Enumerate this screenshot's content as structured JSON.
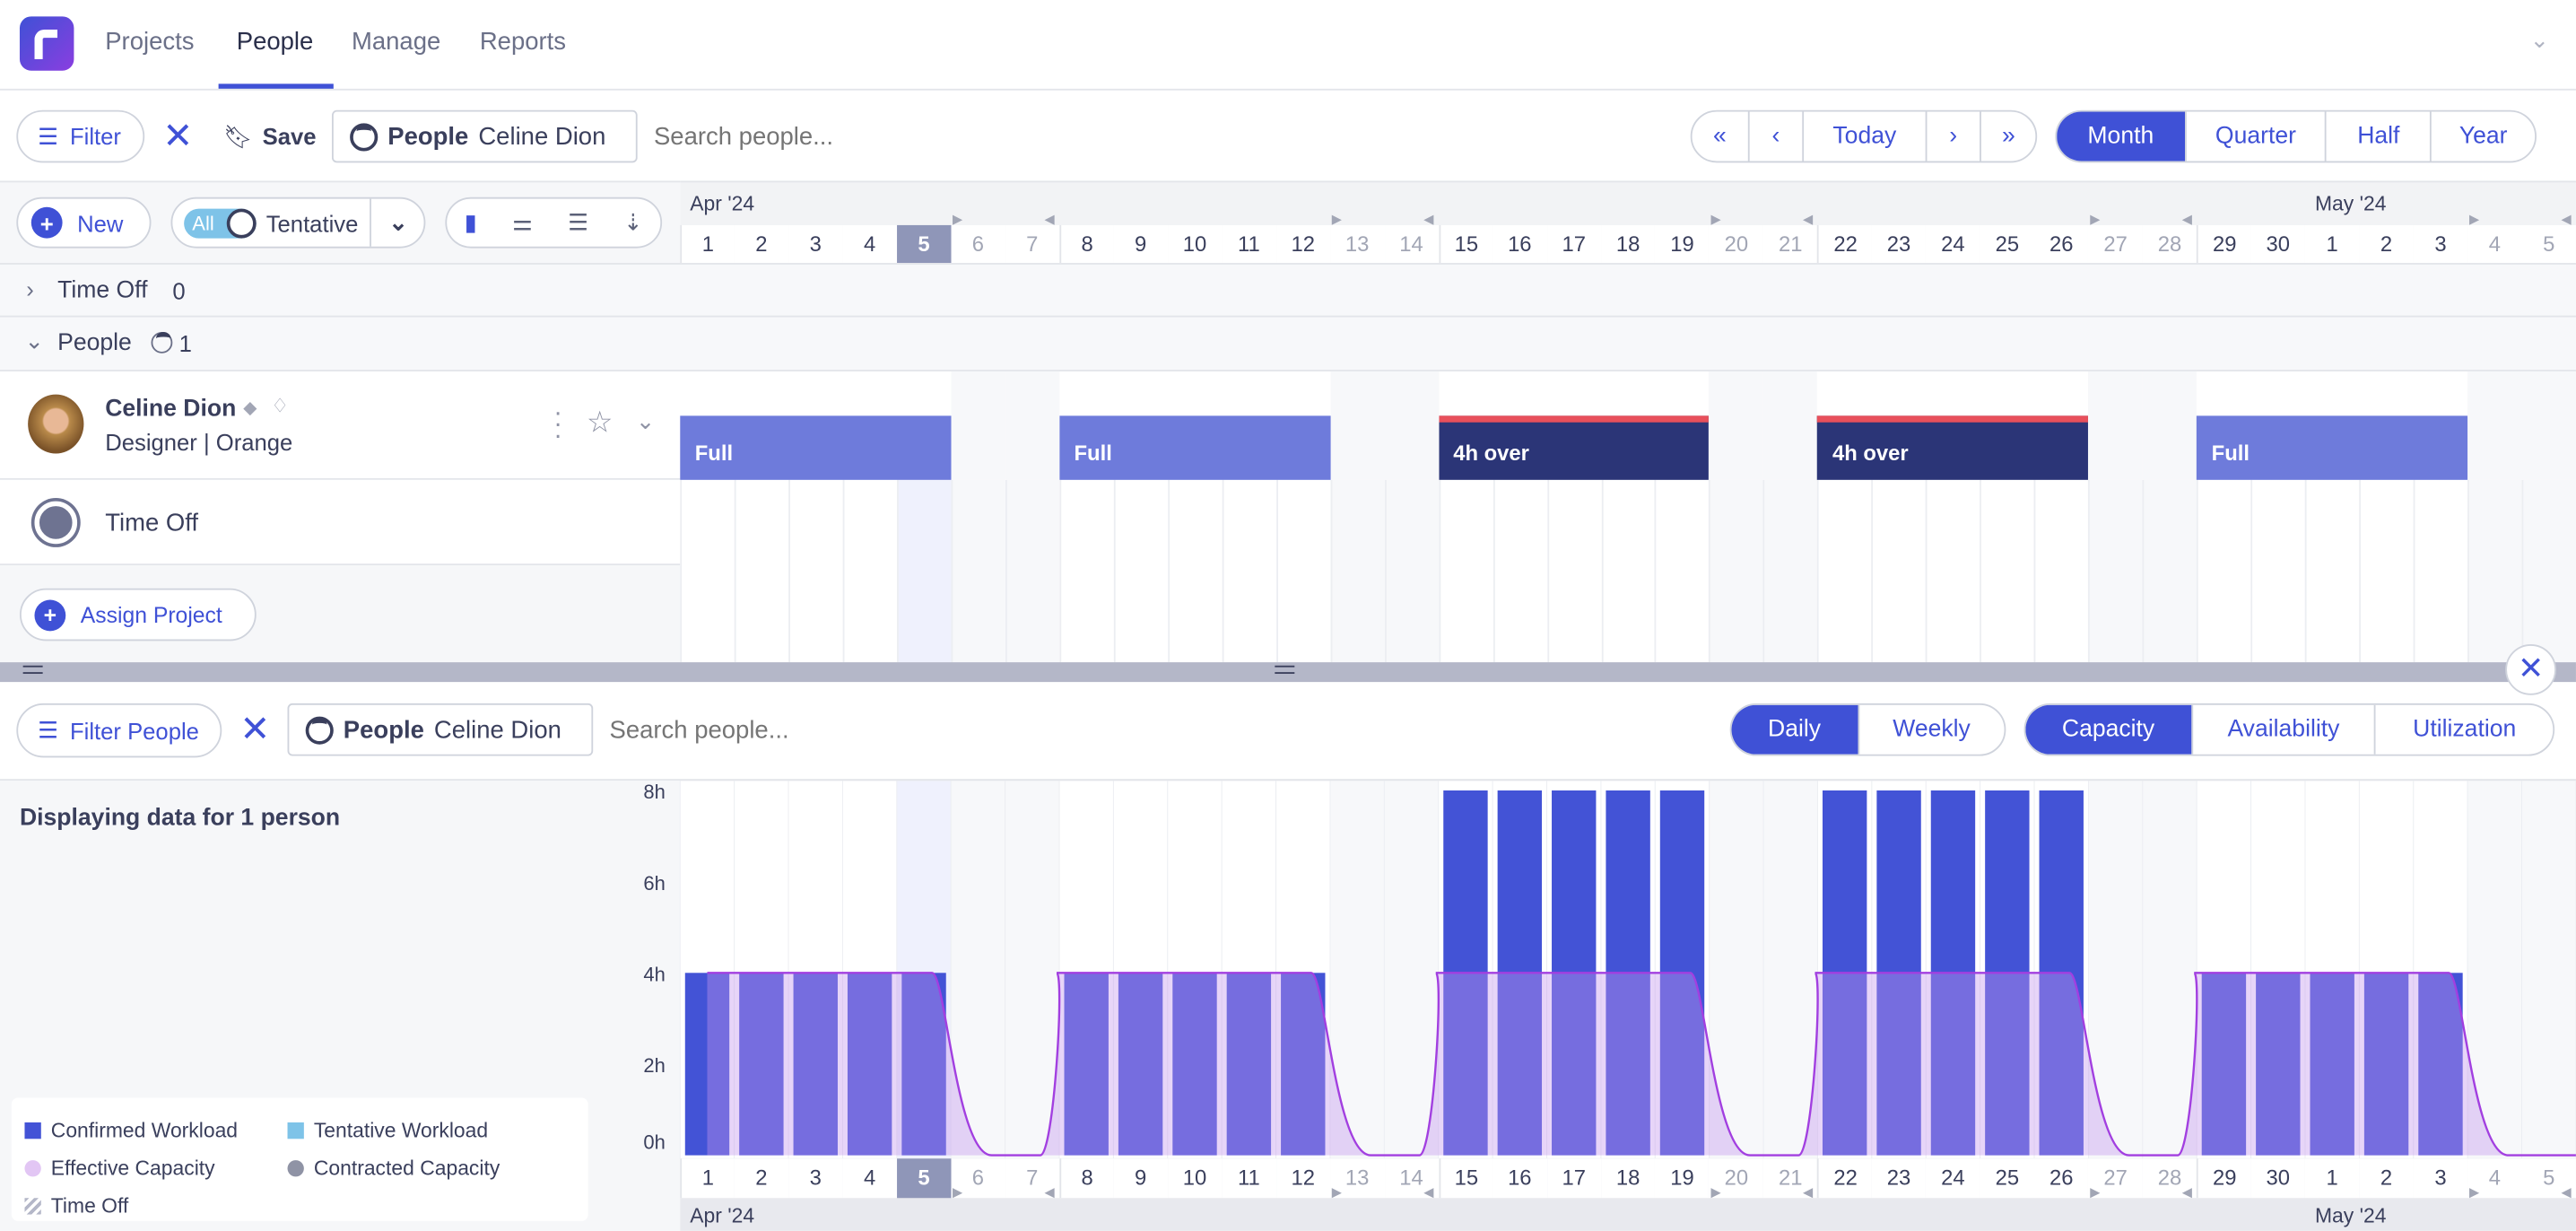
{
  "nav": {
    "tabs": [
      {
        "label": "Projects"
      },
      {
        "label": "People",
        "active": true
      },
      {
        "label": "Manage"
      },
      {
        "label": "Reports"
      }
    ]
  },
  "toolbar": {
    "filter": "Filter",
    "save": "Save",
    "chip_label": "People",
    "chip_value": "Celine Dion",
    "search_placeholder": "Search people...",
    "today": "Today",
    "ranges": [
      "Month",
      "Quarter",
      "Half",
      "Year"
    ],
    "active_range": "Month"
  },
  "controls": {
    "new": "New",
    "toggle_all": "All",
    "tentative": "Tentative"
  },
  "timeline": {
    "months": [
      {
        "label": "Apr '24",
        "start": 0
      },
      {
        "label": "May '24",
        "start": 30
      }
    ],
    "days": [
      "1",
      "2",
      "3",
      "4",
      "5",
      "6",
      "7",
      "8",
      "9",
      "10",
      "11",
      "12",
      "13",
      "14",
      "15",
      "16",
      "17",
      "18",
      "19",
      "20",
      "21",
      "22",
      "23",
      "24",
      "25",
      "26",
      "27",
      "28",
      "29",
      "30",
      "1",
      "2",
      "3",
      "4",
      "5"
    ],
    "weekend": [
      5,
      6,
      12,
      13,
      19,
      20,
      26,
      27,
      33,
      34
    ],
    "today_index": 4
  },
  "groups": {
    "time_off": {
      "label": "Time Off",
      "count": "0"
    },
    "people": {
      "label": "People",
      "count": "1"
    }
  },
  "person": {
    "name": "Celine Dion",
    "role": "Designer | Orange",
    "time_off_label": "Time Off",
    "assign": "Assign Project",
    "allocations": [
      {
        "label": "Full",
        "start": 0,
        "end": 4,
        "over": false
      },
      {
        "label": "Full",
        "start": 7,
        "end": 11,
        "over": false
      },
      {
        "label": "4h over",
        "start": 14,
        "end": 18,
        "over": true
      },
      {
        "label": "4h over",
        "start": 21,
        "end": 25,
        "over": true
      },
      {
        "label": "Full",
        "start": 28,
        "end": 32,
        "over": false
      }
    ]
  },
  "bottom": {
    "filter": "Filter People",
    "chip_label": "People",
    "chip_value": "Celine Dion",
    "search_placeholder": "Search people...",
    "period": [
      "Daily",
      "Weekly"
    ],
    "active_period": "Daily",
    "modes": [
      "Capacity",
      "Availability",
      "Utilization"
    ],
    "active_mode": "Capacity",
    "summary": "Displaying data for 1 person"
  },
  "chart_data": {
    "type": "bar",
    "yticks": [
      "0h",
      "2h",
      "4h",
      "6h",
      "8h"
    ],
    "ylim": [
      0,
      8
    ],
    "categories": [
      "Apr 1",
      "Apr 2",
      "Apr 3",
      "Apr 4",
      "Apr 5",
      "Apr 6",
      "Apr 7",
      "Apr 8",
      "Apr 9",
      "Apr 10",
      "Apr 11",
      "Apr 12",
      "Apr 13",
      "Apr 14",
      "Apr 15",
      "Apr 16",
      "Apr 17",
      "Apr 18",
      "Apr 19",
      "Apr 20",
      "Apr 21",
      "Apr 22",
      "Apr 23",
      "Apr 24",
      "Apr 25",
      "Apr 26",
      "Apr 27",
      "Apr 28",
      "Apr 29",
      "Apr 30",
      "May 1",
      "May 2",
      "May 3",
      "May 4",
      "May 5"
    ],
    "series": [
      {
        "name": "Confirmed Workload",
        "color": "#4353d6",
        "values": [
          4,
          4,
          4,
          4,
          4,
          0,
          0,
          4,
          4,
          4,
          4,
          4,
          0,
          0,
          8,
          8,
          8,
          8,
          8,
          0,
          0,
          8,
          8,
          8,
          8,
          8,
          0,
          0,
          4,
          4,
          4,
          4,
          4,
          0,
          0
        ]
      },
      {
        "name": "Tentative Workload",
        "color": "#7ec3e8",
        "values": [
          0,
          0,
          0,
          0,
          0,
          0,
          0,
          0,
          0,
          0,
          0,
          0,
          0,
          0,
          0,
          0,
          0,
          0,
          0,
          0,
          0,
          0,
          0,
          0,
          0,
          0,
          0,
          0,
          0,
          0,
          0,
          0,
          0,
          0,
          0
        ]
      },
      {
        "name": "Effective Capacity",
        "color": "#a23fe0",
        "values": [
          4,
          4,
          4,
          4,
          4,
          0,
          0,
          4,
          4,
          4,
          4,
          4,
          0,
          0,
          4,
          4,
          4,
          4,
          4,
          0,
          0,
          4,
          4,
          4,
          4,
          4,
          0,
          0,
          4,
          4,
          4,
          4,
          4,
          0,
          0
        ]
      }
    ],
    "legend": [
      "Confirmed Workload",
      "Tentative Workload",
      "Effective Capacity",
      "Contracted Capacity",
      "Time Off"
    ],
    "legend_position": "bottom-left"
  }
}
